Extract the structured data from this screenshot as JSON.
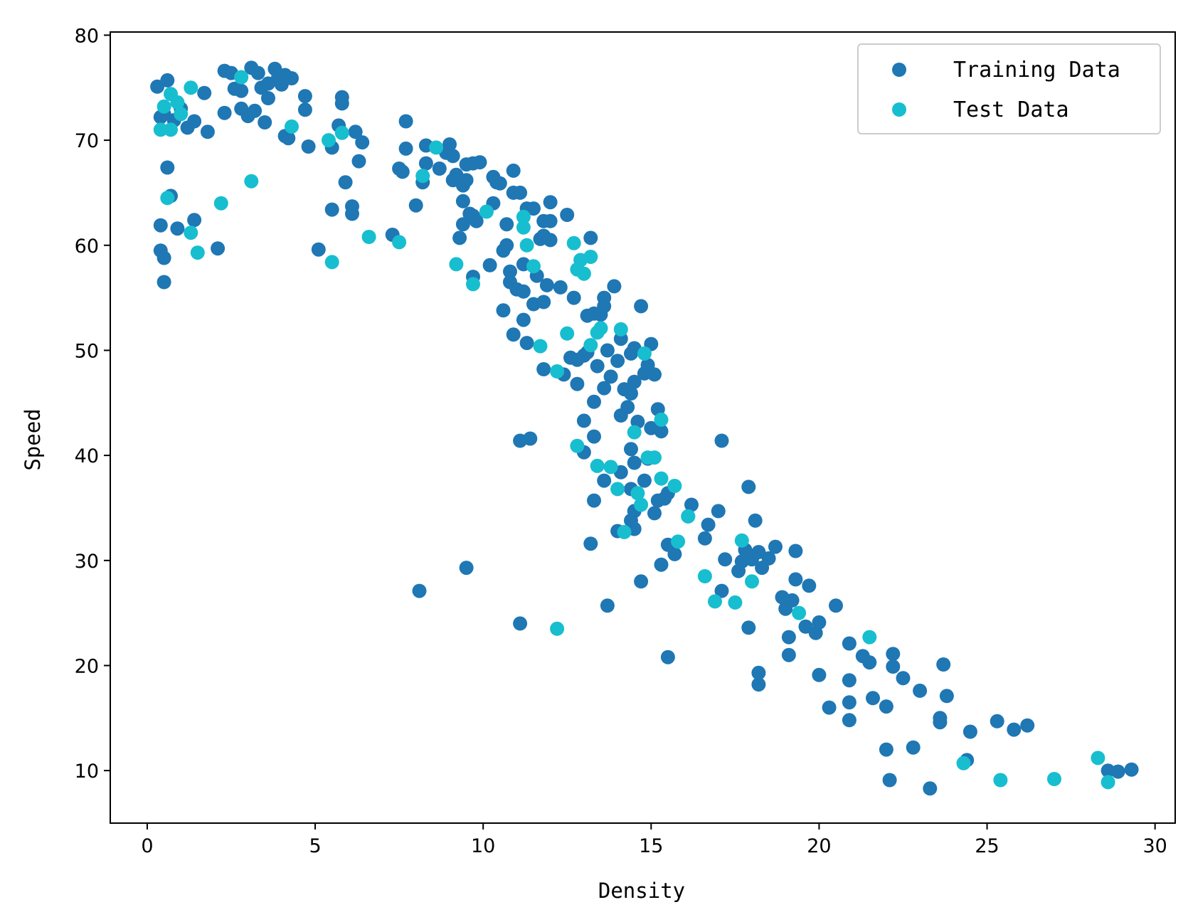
{
  "chart_data": {
    "type": "scatter",
    "title": "",
    "xlabel": "Density",
    "ylabel": "Speed",
    "xlim": [
      -1.1,
      30.6
    ],
    "ylim": [
      5,
      80.3
    ],
    "xticks": [
      0,
      5,
      10,
      15,
      20,
      25,
      30
    ],
    "yticks": [
      10,
      20,
      30,
      40,
      50,
      60,
      70,
      80
    ],
    "grid": false,
    "legend": {
      "position": "top-right"
    },
    "series": [
      {
        "name": "Training Data",
        "color": "#1f77b4",
        "points": [
          [
            0.3,
            75.1
          ],
          [
            0.5,
            72.5
          ],
          [
            0.6,
            75.7
          ],
          [
            0.4,
            72.2
          ],
          [
            0.8,
            71.9
          ],
          [
            1.0,
            73.0
          ],
          [
            1.2,
            71.2
          ],
          [
            1.4,
            71.8
          ],
          [
            1.7,
            74.5
          ],
          [
            1.8,
            70.8
          ],
          [
            0.6,
            67.4
          ],
          [
            0.7,
            64.7
          ],
          [
            0.4,
            61.9
          ],
          [
            0.9,
            61.6
          ],
          [
            1.4,
            62.4
          ],
          [
            0.4,
            59.5
          ],
          [
            0.5,
            58.8
          ],
          [
            0.5,
            56.5
          ],
          [
            2.1,
            59.7
          ],
          [
            2.3,
            76.6
          ],
          [
            2.5,
            76.4
          ],
          [
            2.6,
            74.9
          ],
          [
            2.8,
            74.7
          ],
          [
            2.8,
            73.0
          ],
          [
            2.3,
            72.6
          ],
          [
            3.0,
            72.3
          ],
          [
            3.1,
            76.9
          ],
          [
            3.3,
            76.4
          ],
          [
            3.4,
            75.0
          ],
          [
            3.2,
            72.8
          ],
          [
            3.5,
            71.7
          ],
          [
            3.6,
            74.0
          ],
          [
            3.6,
            75.4
          ],
          [
            3.8,
            76.8
          ],
          [
            3.9,
            76.0
          ],
          [
            4.0,
            75.3
          ],
          [
            4.1,
            76.2
          ],
          [
            4.3,
            75.9
          ],
          [
            4.1,
            70.4
          ],
          [
            4.2,
            70.2
          ],
          [
            4.7,
            74.2
          ],
          [
            4.7,
            72.9
          ],
          [
            4.8,
            69.4
          ],
          [
            5.1,
            59.6
          ],
          [
            5.5,
            69.3
          ],
          [
            5.5,
            63.4
          ],
          [
            5.7,
            71.4
          ],
          [
            5.8,
            74.1
          ],
          [
            5.8,
            73.5
          ],
          [
            5.9,
            66.0
          ],
          [
            6.1,
            63.7
          ],
          [
            6.1,
            63.0
          ],
          [
            6.2,
            70.8
          ],
          [
            6.3,
            68.0
          ],
          [
            6.4,
            69.8
          ],
          [
            7.3,
            61.0
          ],
          [
            7.5,
            67.3
          ],
          [
            7.6,
            67.0
          ],
          [
            7.7,
            71.8
          ],
          [
            7.7,
            69.2
          ],
          [
            8.0,
            63.8
          ],
          [
            8.2,
            66.0
          ],
          [
            8.3,
            69.5
          ],
          [
            8.3,
            67.8
          ],
          [
            8.7,
            67.3
          ],
          [
            8.9,
            68.8
          ],
          [
            9.0,
            69.6
          ],
          [
            9.1,
            68.5
          ],
          [
            9.1,
            66.2
          ],
          [
            9.2,
            66.7
          ],
          [
            9.4,
            64.2
          ],
          [
            9.4,
            65.7
          ],
          [
            9.4,
            62.0
          ],
          [
            9.5,
            67.7
          ],
          [
            9.5,
            66.2
          ],
          [
            9.6,
            63.0
          ],
          [
            9.7,
            62.8
          ],
          [
            9.7,
            67.8
          ],
          [
            9.8,
            62.3
          ],
          [
            9.9,
            67.9
          ],
          [
            9.3,
            60.7
          ],
          [
            9.7,
            57.0
          ],
          [
            10.3,
            66.5
          ],
          [
            10.4,
            66.0
          ],
          [
            10.5,
            65.9
          ],
          [
            10.3,
            64.0
          ],
          [
            10.7,
            62.0
          ],
          [
            10.2,
            58.1
          ],
          [
            10.6,
            59.5
          ],
          [
            10.7,
            60.0
          ],
          [
            10.9,
            65.0
          ],
          [
            10.9,
            67.1
          ],
          [
            11.1,
            65.0
          ],
          [
            10.8,
            57.5
          ],
          [
            10.8,
            56.5
          ],
          [
            11.0,
            55.8
          ],
          [
            11.2,
            55.6
          ],
          [
            11.2,
            58.2
          ],
          [
            11.3,
            63.5
          ],
          [
            11.5,
            63.5
          ],
          [
            10.6,
            53.8
          ],
          [
            10.9,
            51.5
          ],
          [
            11.2,
            52.9
          ],
          [
            11.3,
            50.7
          ],
          [
            11.5,
            54.4
          ],
          [
            11.6,
            57.1
          ],
          [
            11.7,
            60.6
          ],
          [
            11.8,
            60.9
          ],
          [
            11.8,
            62.3
          ],
          [
            12.0,
            62.3
          ],
          [
            12.0,
            60.5
          ],
          [
            12.0,
            64.1
          ],
          [
            11.9,
            56.2
          ],
          [
            11.8,
            54.6
          ],
          [
            11.8,
            48.2
          ],
          [
            11.1,
            41.4
          ],
          [
            11.4,
            41.6
          ],
          [
            12.3,
            56.0
          ],
          [
            12.5,
            62.9
          ],
          [
            12.7,
            55.0
          ],
          [
            12.4,
            47.7
          ],
          [
            12.6,
            49.3
          ],
          [
            12.8,
            46.8
          ],
          [
            12.8,
            49.1
          ],
          [
            13.0,
            49.5
          ],
          [
            13.1,
            49.8
          ],
          [
            13.1,
            53.3
          ],
          [
            13.2,
            60.7
          ],
          [
            13.3,
            53.5
          ],
          [
            13.5,
            53.4
          ],
          [
            13.6,
            55.0
          ],
          [
            13.6,
            54.2
          ],
          [
            13.7,
            50.0
          ],
          [
            13.4,
            48.5
          ],
          [
            13.3,
            45.1
          ],
          [
            13.6,
            46.4
          ],
          [
            13.8,
            47.5
          ],
          [
            13.9,
            56.1
          ],
          [
            14.0,
            49.0
          ],
          [
            14.1,
            51.1
          ],
          [
            14.2,
            46.3
          ],
          [
            14.1,
            43.8
          ],
          [
            14.3,
            44.6
          ],
          [
            14.4,
            49.7
          ],
          [
            14.5,
            50.2
          ],
          [
            14.7,
            54.2
          ],
          [
            14.8,
            47.8
          ],
          [
            14.9,
            48.6
          ],
          [
            15.0,
            50.6
          ],
          [
            15.1,
            47.7
          ],
          [
            14.4,
            45.9
          ],
          [
            14.5,
            47.0
          ],
          [
            14.6,
            43.2
          ],
          [
            13.0,
            43.3
          ],
          [
            13.3,
            41.8
          ],
          [
            13.0,
            40.3
          ],
          [
            13.6,
            37.6
          ],
          [
            14.1,
            38.4
          ],
          [
            14.4,
            40.6
          ],
          [
            14.5,
            39.3
          ],
          [
            14.8,
            37.6
          ],
          [
            14.9,
            39.7
          ],
          [
            15.0,
            42.6
          ],
          [
            15.2,
            44.4
          ],
          [
            15.3,
            42.3
          ],
          [
            14.4,
            36.8
          ],
          [
            14.5,
            34.7
          ],
          [
            14.4,
            33.8
          ],
          [
            14.5,
            33.0
          ],
          [
            13.3,
            35.7
          ],
          [
            14.0,
            32.8
          ],
          [
            15.1,
            34.5
          ],
          [
            15.2,
            35.7
          ],
          [
            15.4,
            35.9
          ],
          [
            15.5,
            36.4
          ],
          [
            16.1,
            34.2
          ],
          [
            16.2,
            35.3
          ],
          [
            16.6,
            32.1
          ],
          [
            16.7,
            33.4
          ],
          [
            17.0,
            34.7
          ],
          [
            17.1,
            41.4
          ],
          [
            15.5,
            31.5
          ],
          [
            15.7,
            30.6
          ],
          [
            15.3,
            29.6
          ],
          [
            13.2,
            31.6
          ],
          [
            14.7,
            28.0
          ],
          [
            13.7,
            25.7
          ],
          [
            9.5,
            29.3
          ],
          [
            8.1,
            27.1
          ],
          [
            11.1,
            24.0
          ],
          [
            15.5,
            20.8
          ],
          [
            17.2,
            30.1
          ],
          [
            17.1,
            27.1
          ],
          [
            17.6,
            29.0
          ],
          [
            17.7,
            29.9
          ],
          [
            17.8,
            31.0
          ],
          [
            17.9,
            37.0
          ],
          [
            18.0,
            30.1
          ],
          [
            18.1,
            33.8
          ],
          [
            18.2,
            30.8
          ],
          [
            18.3,
            29.3
          ],
          [
            18.5,
            30.2
          ],
          [
            18.7,
            31.3
          ],
          [
            17.9,
            23.6
          ],
          [
            18.2,
            19.3
          ],
          [
            18.2,
            18.2
          ],
          [
            18.9,
            26.5
          ],
          [
            19.0,
            25.4
          ],
          [
            19.2,
            26.2
          ],
          [
            19.3,
            28.2
          ],
          [
            19.3,
            30.9
          ],
          [
            19.7,
            27.6
          ],
          [
            19.6,
            23.7
          ],
          [
            19.9,
            23.1
          ],
          [
            20.0,
            24.1
          ],
          [
            19.1,
            22.7
          ],
          [
            19.1,
            21.0
          ],
          [
            20.0,
            19.1
          ],
          [
            20.5,
            25.7
          ],
          [
            20.9,
            22.1
          ],
          [
            21.3,
            20.9
          ],
          [
            21.5,
            20.3
          ],
          [
            22.2,
            21.1
          ],
          [
            22.2,
            19.9
          ],
          [
            22.5,
            18.8
          ],
          [
            20.3,
            16.0
          ],
          [
            20.9,
            18.6
          ],
          [
            20.9,
            16.5
          ],
          [
            20.9,
            14.8
          ],
          [
            21.6,
            16.9
          ],
          [
            22.0,
            16.1
          ],
          [
            23.0,
            17.6
          ],
          [
            23.6,
            14.6
          ],
          [
            23.6,
            15.0
          ],
          [
            23.7,
            20.1
          ],
          [
            23.8,
            17.1
          ],
          [
            22.1,
            9.1
          ],
          [
            22.0,
            12.0
          ],
          [
            22.8,
            12.2
          ],
          [
            23.3,
            8.3
          ],
          [
            24.4,
            11.0
          ],
          [
            24.5,
            13.7
          ],
          [
            25.3,
            14.7
          ],
          [
            25.8,
            13.9
          ],
          [
            26.2,
            14.3
          ],
          [
            28.6,
            10.0
          ],
          [
            28.9,
            9.9
          ],
          [
            29.3,
            10.1
          ]
        ]
      },
      {
        "name": "Test Data",
        "color": "#17becf",
        "points": [
          [
            0.5,
            73.2
          ],
          [
            0.7,
            74.4
          ],
          [
            0.9,
            73.6
          ],
          [
            1.0,
            72.5
          ],
          [
            0.4,
            71.0
          ],
          [
            0.7,
            71.0
          ],
          [
            1.3,
            75.0
          ],
          [
            0.6,
            64.5
          ],
          [
            1.3,
            61.2
          ],
          [
            1.5,
            59.3
          ],
          [
            2.2,
            64.0
          ],
          [
            2.8,
            76.0
          ],
          [
            3.1,
            66.1
          ],
          [
            4.3,
            71.3
          ],
          [
            5.4,
            70.0
          ],
          [
            5.8,
            70.7
          ],
          [
            5.5,
            58.4
          ],
          [
            6.6,
            60.8
          ],
          [
            7.5,
            60.3
          ],
          [
            8.2,
            66.6
          ],
          [
            8.6,
            69.3
          ],
          [
            9.2,
            58.2
          ],
          [
            9.7,
            56.3
          ],
          [
            10.1,
            63.2
          ],
          [
            11.2,
            62.7
          ],
          [
            11.2,
            61.7
          ],
          [
            11.3,
            60.0
          ],
          [
            11.5,
            58.0
          ],
          [
            11.7,
            50.4
          ],
          [
            12.2,
            48.0
          ],
          [
            12.2,
            23.5
          ],
          [
            12.7,
            60.2
          ],
          [
            12.8,
            57.7
          ],
          [
            12.9,
            58.6
          ],
          [
            13.0,
            57.3
          ],
          [
            13.2,
            58.9
          ],
          [
            12.5,
            51.6
          ],
          [
            13.2,
            50.5
          ],
          [
            13.4,
            51.7
          ],
          [
            13.5,
            52.1
          ],
          [
            14.1,
            52.0
          ],
          [
            14.8,
            49.7
          ],
          [
            12.8,
            40.9
          ],
          [
            13.4,
            39.0
          ],
          [
            13.8,
            38.9
          ],
          [
            14.0,
            36.8
          ],
          [
            14.5,
            42.2
          ],
          [
            14.6,
            36.4
          ],
          [
            14.7,
            35.3
          ],
          [
            14.9,
            39.8
          ],
          [
            15.1,
            39.8
          ],
          [
            15.3,
            43.4
          ],
          [
            15.3,
            37.8
          ],
          [
            15.7,
            37.1
          ],
          [
            14.2,
            32.7
          ],
          [
            15.8,
            31.8
          ],
          [
            16.1,
            34.2
          ],
          [
            16.6,
            28.5
          ],
          [
            16.9,
            26.1
          ],
          [
            17.5,
            26.0
          ],
          [
            17.7,
            31.9
          ],
          [
            18.0,
            28.0
          ],
          [
            19.4,
            25.0
          ],
          [
            21.5,
            22.7
          ],
          [
            24.3,
            10.7
          ],
          [
            25.4,
            9.1
          ],
          [
            27.0,
            9.2
          ],
          [
            28.3,
            11.2
          ],
          [
            28.6,
            8.9
          ]
        ]
      }
    ]
  }
}
